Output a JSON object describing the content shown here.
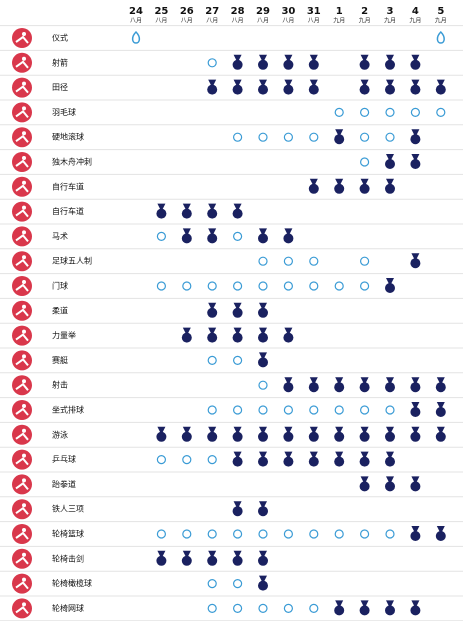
{
  "header": {
    "dates": [
      {
        "day": "24",
        "month": "八月"
      },
      {
        "day": "25",
        "month": "八月"
      },
      {
        "day": "26",
        "month": "八月"
      },
      {
        "day": "27",
        "month": "八月"
      },
      {
        "day": "28",
        "month": "八月"
      },
      {
        "day": "29",
        "month": "八月"
      },
      {
        "day": "30",
        "month": "八月"
      },
      {
        "day": "31",
        "month": "八月"
      },
      {
        "day": "1",
        "month": "九月"
      },
      {
        "day": "2",
        "month": "九月"
      },
      {
        "day": "3",
        "month": "九月"
      },
      {
        "day": "4",
        "month": "九月"
      },
      {
        "day": "5",
        "month": "九月"
      }
    ]
  },
  "rows": [
    {
      "name": "仪式",
      "days": [
        "ceremony",
        null,
        null,
        null,
        null,
        null,
        null,
        null,
        null,
        null,
        null,
        null,
        "ceremony"
      ]
    },
    {
      "name": "射箭",
      "days": [
        null,
        null,
        null,
        "competition",
        "medal",
        "medal",
        "medal",
        "medal",
        null,
        "medal",
        "medal",
        "medal",
        null
      ]
    },
    {
      "name": "田径",
      "days": [
        null,
        null,
        null,
        "medal",
        "medal",
        "medal",
        "medal",
        "medal",
        null,
        "medal",
        "medal",
        "medal",
        "medal"
      ]
    },
    {
      "name": "羽毛球",
      "days": [
        null,
        null,
        null,
        null,
        null,
        null,
        null,
        null,
        "competition",
        "competition",
        "competition",
        "competition",
        "competition"
      ]
    },
    {
      "name": "硬地滚球",
      "days": [
        null,
        null,
        null,
        null,
        "competition",
        "competition",
        "competition",
        "competition",
        "medal",
        "competition",
        "competition",
        "medal",
        null
      ]
    },
    {
      "name": "独木舟冲刺",
      "days": [
        null,
        null,
        null,
        null,
        null,
        null,
        null,
        null,
        null,
        "competition",
        "medal",
        "medal",
        null
      ]
    },
    {
      "name": "自行车道",
      "days": [
        null,
        null,
        null,
        null,
        null,
        null,
        null,
        "medal",
        "medal",
        "medal",
        "medal",
        null,
        null
      ]
    },
    {
      "name": "自行车道",
      "days": [
        null,
        "medal",
        "medal",
        "medal",
        "medal",
        null,
        null,
        null,
        null,
        null,
        null,
        null,
        null
      ]
    },
    {
      "name": "马术",
      "days": [
        null,
        "competition",
        "medal",
        "medal",
        "competition",
        "medal",
        "medal",
        null,
        null,
        null,
        null,
        null,
        null
      ]
    },
    {
      "name": "足球五人制",
      "days": [
        null,
        null,
        null,
        null,
        null,
        "competition",
        "competition",
        "competition",
        null,
        "competition",
        null,
        "medal",
        null
      ]
    },
    {
      "name": "门球",
      "days": [
        null,
        "competition",
        "competition",
        "competition",
        "competition",
        "competition",
        "competition",
        "competition",
        "competition",
        "competition",
        "medal",
        null,
        null
      ]
    },
    {
      "name": "柔道",
      "days": [
        null,
        null,
        null,
        "medal",
        "medal",
        "medal",
        null,
        null,
        null,
        null,
        null,
        null,
        null
      ]
    },
    {
      "name": "力量举",
      "days": [
        null,
        null,
        "medal",
        "medal",
        "medal",
        "medal",
        "medal",
        null,
        null,
        null,
        null,
        null,
        null
      ]
    },
    {
      "name": "赛艇",
      "days": [
        null,
        null,
        null,
        "competition",
        "competition",
        "medal",
        null,
        null,
        null,
        null,
        null,
        null,
        null
      ]
    },
    {
      "name": "射击",
      "days": [
        null,
        null,
        null,
        null,
        null,
        "competition",
        "medal",
        "medal",
        "medal",
        "medal",
        "medal",
        "medal",
        "medal"
      ]
    },
    {
      "name": "坐式排球",
      "days": [
        null,
        null,
        null,
        "competition",
        "competition",
        "competition",
        "competition",
        "competition",
        "competition",
        "competition",
        "competition",
        "medal",
        "medal"
      ]
    },
    {
      "name": "游泳",
      "days": [
        null,
        "medal",
        "medal",
        "medal",
        "medal",
        "medal",
        "medal",
        "medal",
        "medal",
        "medal",
        "medal",
        "medal",
        "medal"
      ]
    },
    {
      "name": "乒乓球",
      "days": [
        null,
        "competition",
        "competition",
        "competition",
        "medal",
        "medal",
        "medal",
        "medal",
        "medal",
        "medal",
        "medal",
        null,
        null
      ]
    },
    {
      "name": "跆拳道",
      "days": [
        null,
        null,
        null,
        null,
        null,
        null,
        null,
        null,
        null,
        "medal",
        "medal",
        "medal",
        null
      ]
    },
    {
      "name": "铁人三项",
      "days": [
        null,
        null,
        null,
        null,
        "medal",
        "medal",
        null,
        null,
        null,
        null,
        null,
        null,
        null
      ]
    },
    {
      "name": "轮椅篮球",
      "days": [
        null,
        "competition",
        "competition",
        "competition",
        "competition",
        "competition",
        "competition",
        "competition",
        "competition",
        "competition",
        "competition",
        "medal",
        "medal"
      ]
    },
    {
      "name": "轮椅击剑",
      "days": [
        null,
        "medal",
        "medal",
        "medal",
        "medal",
        "medal",
        null,
        null,
        null,
        null,
        null,
        null,
        null
      ]
    },
    {
      "name": "轮椅橄榄球",
      "days": [
        null,
        null,
        null,
        "competition",
        "competition",
        "medal",
        null,
        null,
        null,
        null,
        null,
        null,
        null
      ]
    },
    {
      "name": "轮椅网球",
      "days": [
        null,
        null,
        null,
        "competition",
        "competition",
        "competition",
        "competition",
        "competition",
        "medal",
        "medal",
        "medal",
        "medal",
        null
      ]
    }
  ]
}
